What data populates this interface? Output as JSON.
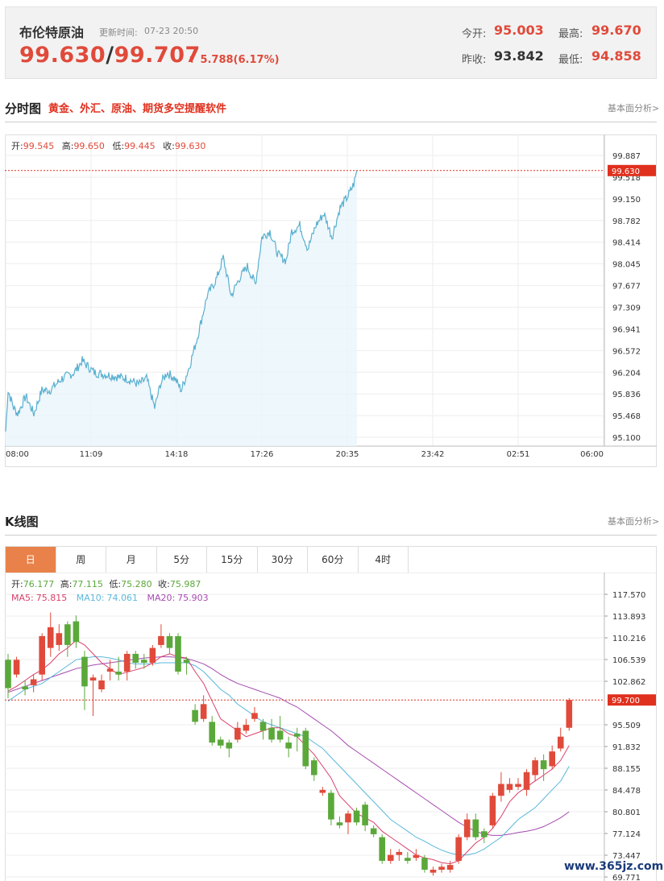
{
  "quote": {
    "name": "布伦特原油",
    "time_label": "更新时间:",
    "time": "07-23 20:50",
    "price_bid": "99.630",
    "price_ask": "99.707",
    "change": "5.788(6.17%)",
    "open_label": "今开:",
    "open": "95.003",
    "high_label": "最高:",
    "high": "99.670",
    "prev_label": "昨收:",
    "prev": "93.842",
    "low_label": "最低:",
    "low": "94.858"
  },
  "intraday_section": {
    "title": "分时图",
    "ad": "黄金、外汇、原油、期货多空提醒软件",
    "link": "基本面分析>"
  },
  "kline_section": {
    "title": "K线图",
    "link": "基本面分析>"
  },
  "intraday_legend": {
    "open_label": "开:",
    "open": "99.545",
    "high_label": "高:",
    "high": "99.650",
    "low_label": "低:",
    "low": "99.445",
    "close_label": "收:",
    "close": "99.630"
  },
  "kline_legend": {
    "open_label": "开:",
    "open": "76.177",
    "high_label": "高:",
    "high": "77.115",
    "low_label": "低:",
    "low": "75.280",
    "close_label": "收:",
    "close": "75.987",
    "ma5_label": "MA5:",
    "ma5": "75.815",
    "ma10_label": "MA10:",
    "ma10": "74.061",
    "ma20_label": "MA20:",
    "ma20": "75.903"
  },
  "tabs": [
    "日",
    "周",
    "月",
    "5分",
    "15分",
    "30分",
    "60分",
    "4时"
  ],
  "active_tab": 0,
  "watermark": "www.365jz.com",
  "colors": {
    "up": "#e04a3a",
    "down": "#5aa83a",
    "line": "#5ab0cf",
    "ma5": "#d9406a",
    "ma10": "#5ab8dc",
    "ma20": "#a64bb0",
    "last_tag": "#e0301e"
  },
  "chart_data": [
    {
      "type": "line",
      "x_ticks": [
        "08:00",
        "11:09",
        "14:18",
        "17:26",
        "20:35",
        "23:42",
        "02:51",
        "06:00"
      ],
      "y_ticks": [
        "99.887",
        "99.518",
        "99.150",
        "98.782",
        "98.414",
        "98.045",
        "97.677",
        "97.309",
        "96.941",
        "96.572",
        "96.204",
        "95.836",
        "95.468",
        "95.100"
      ],
      "ylim": [
        95.1,
        99.887
      ],
      "last_price": "99.630",
      "anchors": [
        [
          0,
          95.2
        ],
        [
          3,
          95.9
        ],
        [
          10,
          95.6
        ],
        [
          15,
          95.5
        ],
        [
          25,
          95.8
        ],
        [
          35,
          95.5
        ],
        [
          45,
          95.9
        ],
        [
          55,
          95.9
        ],
        [
          70,
          96.1
        ],
        [
          85,
          96.2
        ],
        [
          95,
          96.4
        ],
        [
          110,
          96.2
        ],
        [
          130,
          96.15
        ],
        [
          150,
          96.1
        ],
        [
          165,
          96.0
        ],
        [
          175,
          96.1
        ],
        [
          185,
          95.6
        ],
        [
          192,
          96.0
        ],
        [
          200,
          96.2
        ],
        [
          210,
          96.1
        ],
        [
          218,
          95.9
        ],
        [
          228,
          96.3
        ],
        [
          238,
          96.8
        ],
        [
          250,
          97.5
        ],
        [
          262,
          97.8
        ],
        [
          270,
          98.15
        ],
        [
          280,
          97.5
        ],
        [
          290,
          97.8
        ],
        [
          300,
          98.0
        ],
        [
          310,
          97.7
        ],
        [
          318,
          98.5
        ],
        [
          328,
          98.6
        ],
        [
          338,
          98.2
        ],
        [
          348,
          98.1
        ],
        [
          355,
          98.6
        ],
        [
          365,
          98.7
        ],
        [
          375,
          98.3
        ],
        [
          385,
          98.7
        ],
        [
          395,
          98.9
        ],
        [
          405,
          98.5
        ],
        [
          415,
          99.0
        ],
        [
          425,
          99.2
        ],
        [
          432,
          99.4
        ],
        [
          436,
          99.63
        ]
      ]
    },
    {
      "type": "candlestick",
      "y_ticks": [
        "117.570",
        "113.893",
        "110.216",
        "106.539",
        "102.862",
        "95.509",
        "91.832",
        "88.155",
        "84.478",
        "80.801",
        "77.124",
        "73.447",
        "69.771"
      ],
      "ylim": [
        69.771,
        117.57
      ],
      "last_price": "99.700",
      "candles": [
        [
          106.5,
          101.7,
          107.5,
          100.0
        ],
        [
          104.0,
          106.5,
          107.0,
          103.5
        ],
        [
          102.0,
          101.5,
          103.0,
          100.5
        ],
        [
          102.2,
          103.2,
          104.0,
          101.0
        ],
        [
          104.0,
          110.5,
          111.0,
          103.0
        ],
        [
          108.5,
          112.0,
          114.5,
          107.0
        ],
        [
          109.0,
          111.0,
          112.5,
          108.0
        ],
        [
          112.5,
          109.0,
          113.0,
          107.0
        ],
        [
          113.0,
          109.5,
          114.0,
          108.5
        ],
        [
          107.0,
          102.0,
          108.0,
          98.0
        ],
        [
          103.0,
          103.5,
          104.0,
          97.0
        ],
        [
          101.5,
          103.0,
          104.0,
          101.0
        ],
        [
          104.5,
          105.0,
          106.5,
          103.0
        ],
        [
          104.5,
          104.0,
          107.0,
          103.0
        ],
        [
          104.5,
          107.5,
          108.0,
          103.0
        ],
        [
          107.5,
          106.0,
          108.0,
          105.0
        ],
        [
          106.5,
          106.0,
          107.5,
          105.0
        ],
        [
          106.0,
          108.5,
          109.0,
          105.5
        ],
        [
          109.0,
          110.5,
          112.5,
          108.5
        ],
        [
          110.5,
          108.5,
          111.0,
          107.5
        ],
        [
          110.5,
          104.5,
          111.0,
          104.0
        ],
        [
          106.5,
          106.0,
          107.0,
          104.0
        ],
        [
          98.0,
          96.0,
          99.0,
          95.5
        ],
        [
          96.5,
          99.0,
          100.5,
          96.0
        ],
        [
          96.0,
          92.5,
          97.0,
          92.0
        ],
        [
          93.0,
          92.0,
          93.5,
          91.5
        ],
        [
          92.5,
          91.5,
          93.0,
          90.0
        ],
        [
          93.0,
          95.0,
          96.0,
          92.5
        ],
        [
          94.5,
          95.5,
          96.5,
          94.0
        ],
        [
          96.5,
          97.5,
          98.5,
          96.0
        ],
        [
          96.0,
          94.5,
          96.5,
          93.0
        ],
        [
          95.0,
          93.0,
          96.5,
          92.5
        ],
        [
          94.5,
          93.0,
          97.0,
          92.5
        ],
        [
          92.5,
          91.5,
          93.5,
          90.0
        ],
        [
          94.0,
          93.5,
          95.0,
          91.0
        ],
        [
          94.5,
          88.5,
          95.0,
          88.0
        ],
        [
          89.5,
          87.0,
          90.0,
          86.0
        ],
        [
          84.0,
          84.5,
          85.0,
          83.5
        ],
        [
          84.0,
          79.5,
          84.5,
          78.5
        ],
        [
          79.0,
          78.5,
          80.0,
          78.0
        ],
        [
          79.0,
          80.5,
          81.0,
          77.0
        ],
        [
          81.0,
          79.0,
          81.5,
          78.5
        ],
        [
          82.0,
          78.5,
          82.5,
          77.5
        ],
        [
          78.0,
          77.0,
          78.5,
          76.5
        ],
        [
          76.5,
          72.5,
          77.0,
          72.0
        ],
        [
          72.5,
          73.5,
          74.5,
          72.0
        ],
        [
          73.5,
          74.0,
          74.5,
          72.5
        ],
        [
          73.0,
          72.5,
          74.0,
          72.0
        ],
        [
          73.0,
          73.5,
          74.5,
          72.5
        ],
        [
          73.0,
          71.0,
          73.5,
          70.5
        ],
        [
          70.5,
          71.0,
          71.5,
          70.0
        ],
        [
          71.0,
          71.5,
          72.0,
          70.5
        ],
        [
          71.0,
          71.8,
          72.5,
          70.5
        ],
        [
          72.5,
          76.5,
          77.0,
          72.0
        ],
        [
          76.5,
          79.5,
          80.5,
          76.0
        ],
        [
          79.5,
          76.5,
          80.5,
          76.0
        ],
        [
          77.5,
          76.5,
          78.0,
          75.5
        ],
        [
          78.5,
          83.5,
          84.0,
          78.0
        ],
        [
          83.5,
          85.5,
          87.5,
          82.5
        ],
        [
          84.5,
          85.5,
          86.5,
          84.0
        ],
        [
          85.0,
          85.5,
          86.5,
          84.5
        ],
        [
          84.5,
          87.5,
          88.0,
          83.5
        ],
        [
          87.0,
          89.5,
          90.0,
          86.0
        ],
        [
          89.5,
          88.0,
          90.5,
          86.0
        ],
        [
          88.5,
          91.0,
          92.0,
          88.0
        ],
        [
          91.5,
          93.5,
          95.0,
          91.0
        ],
        [
          95.0,
          99.7,
          100.0,
          94.5
        ]
      ],
      "ma5": [
        101.2,
        102.0,
        103.0,
        104.0,
        104.8,
        106.0,
        107.5,
        108.5,
        109.8,
        109.0,
        107.5,
        106.0,
        105.0,
        104.0,
        104.4,
        104.8,
        105.2,
        106.0,
        107.0,
        107.5,
        107.0,
        106.8,
        104.5,
        102.5,
        99.5,
        96.5,
        95.5,
        94.5,
        93.5,
        94.0,
        94.5,
        95.0,
        95.0,
        94.0,
        93.5,
        92.0,
        90.5,
        88.5,
        86.5,
        83.5,
        82.0,
        80.5,
        79.8,
        79.0,
        77.5,
        76.5,
        75.5,
        74.5,
        73.5,
        73.0,
        72.7,
        72.2,
        72.0,
        72.5,
        74.0,
        75.5,
        76.5,
        78.0,
        80.0,
        82.5,
        84.0,
        85.0,
        86.0,
        87.0,
        88.0,
        89.5,
        92.0
      ],
      "ma10": [
        99.5,
        100.5,
        101.5,
        102.0,
        102.5,
        103.5,
        104.5,
        105.5,
        106.5,
        106.8,
        107.0,
        107.0,
        106.8,
        106.5,
        106.0,
        105.8,
        105.8,
        105.8,
        106.0,
        106.0,
        106.0,
        106.0,
        105.5,
        104.5,
        103.0,
        101.5,
        100.5,
        99.0,
        98.0,
        97.0,
        96.0,
        95.5,
        95.0,
        94.5,
        94.0,
        93.5,
        92.5,
        91.5,
        90.0,
        88.5,
        87.0,
        85.5,
        84.0,
        82.5,
        81.0,
        79.5,
        78.5,
        77.5,
        76.5,
        75.8,
        75.0,
        74.3,
        73.8,
        73.5,
        73.5,
        73.8,
        74.5,
        75.5,
        76.5,
        78.0,
        79.5,
        80.5,
        81.5,
        83.0,
        84.5,
        86.0,
        88.5
      ],
      "ma20": [
        101.0,
        101.5,
        102.0,
        102.5,
        103.0,
        103.5,
        104.0,
        104.5,
        105.0,
        105.3,
        105.6,
        105.8,
        106.0,
        106.2,
        106.4,
        106.6,
        106.8,
        106.9,
        107.0,
        107.0,
        106.9,
        106.7,
        106.3,
        105.8,
        105.0,
        104.0,
        103.2,
        102.5,
        102.0,
        101.5,
        101.0,
        100.5,
        100.0,
        99.2,
        98.5,
        97.5,
        96.5,
        95.5,
        94.5,
        93.3,
        92.0,
        91.0,
        90.0,
        89.0,
        88.0,
        87.0,
        86.0,
        85.0,
        84.0,
        83.0,
        82.0,
        81.0,
        80.0,
        79.0,
        78.2,
        77.5,
        77.0,
        76.8,
        76.8,
        77.0,
        77.3,
        77.5,
        77.8,
        78.3,
        79.0,
        79.8,
        80.8
      ]
    }
  ]
}
